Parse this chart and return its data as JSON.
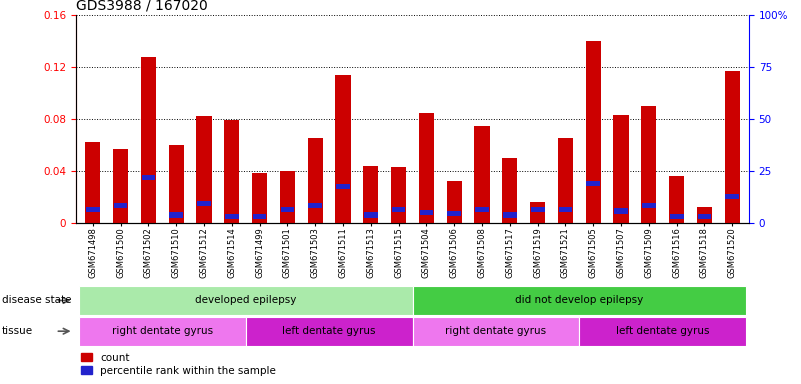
{
  "title": "GDS3988 / 167020",
  "samples": [
    "GSM671498",
    "GSM671500",
    "GSM671502",
    "GSM671510",
    "GSM671512",
    "GSM671514",
    "GSM671499",
    "GSM671501",
    "GSM671503",
    "GSM671511",
    "GSM671513",
    "GSM671515",
    "GSM671504",
    "GSM671506",
    "GSM671508",
    "GSM671517",
    "GSM671519",
    "GSM671521",
    "GSM671505",
    "GSM671507",
    "GSM671509",
    "GSM671516",
    "GSM671518",
    "GSM671520"
  ],
  "counts": [
    0.062,
    0.057,
    0.128,
    0.06,
    0.082,
    0.079,
    0.038,
    0.04,
    0.065,
    0.114,
    0.044,
    0.043,
    0.085,
    0.032,
    0.075,
    0.05,
    0.016,
    0.065,
    0.14,
    0.083,
    0.09,
    0.036,
    0.012,
    0.117
  ],
  "percentile_heights": [
    0.01,
    0.013,
    0.035,
    0.006,
    0.015,
    0.005,
    0.005,
    0.01,
    0.013,
    0.028,
    0.006,
    0.01,
    0.008,
    0.007,
    0.01,
    0.006,
    0.01,
    0.01,
    0.03,
    0.009,
    0.013,
    0.005,
    0.005,
    0.02
  ],
  "bar_color": "#cc0000",
  "blue_color": "#2222cc",
  "disease_state_groups": [
    {
      "label": "developed epilepsy",
      "start": 0,
      "end": 11,
      "color": "#aaeaaa"
    },
    {
      "label": "did not develop epilepsy",
      "start": 12,
      "end": 23,
      "color": "#44cc44"
    }
  ],
  "tissue_groups": [
    {
      "label": "right dentate gyrus",
      "start": 0,
      "end": 5,
      "color": "#ee77ee"
    },
    {
      "label": "left dentate gyrus",
      "start": 6,
      "end": 11,
      "color": "#cc22cc"
    },
    {
      "label": "right dentate gyrus",
      "start": 12,
      "end": 17,
      "color": "#ee77ee"
    },
    {
      "label": "left dentate gyrus",
      "start": 18,
      "end": 23,
      "color": "#cc22cc"
    }
  ],
  "ylim_left": [
    0,
    0.16
  ],
  "ylim_right": [
    0,
    100
  ],
  "yticks_left": [
    0,
    0.04,
    0.08,
    0.12,
    0.16
  ],
  "yticks_right": [
    0,
    25,
    50,
    75,
    100
  ],
  "left_tick_labels": [
    "0",
    "0.04",
    "0.08",
    "0.12",
    "0.16"
  ],
  "right_tick_labels": [
    "0",
    "25",
    "50",
    "75",
    "100%"
  ],
  "disease_state_label": "disease state",
  "tissue_label": "tissue",
  "legend_count": "count",
  "legend_percentile": "percentile rank within the sample",
  "background_color": "#ffffff",
  "plot_bg": "#ffffff",
  "title_fontsize": 10,
  "tick_fontsize": 7.5,
  "bar_width": 0.55
}
